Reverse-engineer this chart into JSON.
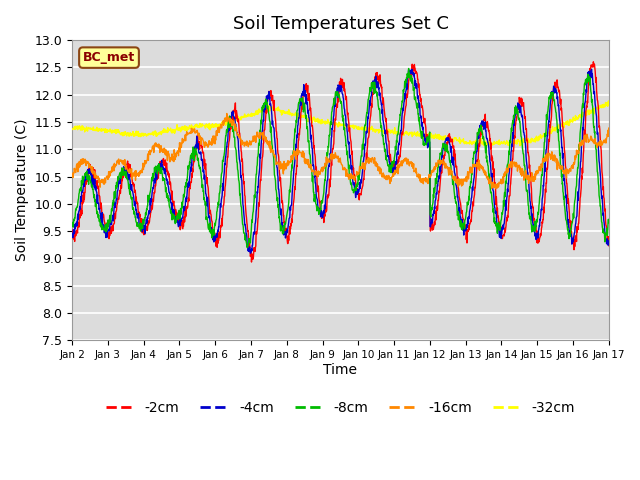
{
  "title": "Soil Temperatures Set C",
  "xlabel": "Time",
  "ylabel": "Soil Temperature (C)",
  "ylim": [
    7.5,
    13.0
  ],
  "plot_bg_color": "#dcdcdc",
  "grid_color": "white",
  "annotation_text": "BC_met",
  "annotation_bg": "#ffff99",
  "annotation_border": "#8B4513",
  "colors": {
    "-2cm": "#ff0000",
    "-4cm": "#0000cc",
    "-8cm": "#00bb00",
    "-16cm": "#ff8800",
    "-32cm": "#ffff00"
  },
  "tick_labels": [
    "Jan 2",
    "Jan 3",
    "Jan 4",
    "Jan 5",
    "Jan 6",
    "Jan 7",
    "Jan 8",
    "Jan 9",
    "Jan 10",
    "Jan 11",
    "Jan 12",
    "Jan 13",
    "Jan 14",
    "Jan 15",
    "Jan 16",
    "Jan 17"
  ],
  "yticks": [
    7.5,
    8.0,
    8.5,
    9.0,
    9.5,
    10.0,
    10.5,
    11.0,
    11.5,
    12.0,
    12.5,
    13.0
  ]
}
